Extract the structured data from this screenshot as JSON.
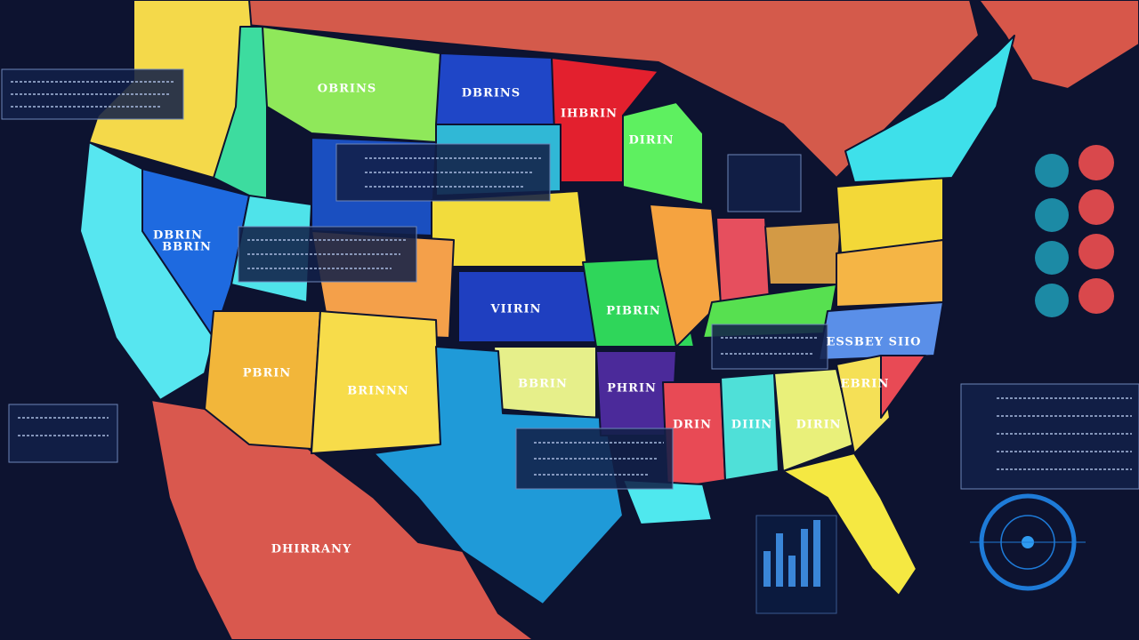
{
  "labels": [
    "OBRINS",
    "DBRINS",
    "IHBRIN",
    "DIRIN",
    "BBRIN",
    "VIIRIN",
    "PIBRIN",
    "PBRIN",
    "BRINNN",
    "BBRIN",
    "PHRIN",
    "DRIN",
    "DIIIN",
    "DIRIN",
    "EBRIN",
    "ESSBEY SIIO",
    "DHIRRANY",
    "DBRIN"
  ]
}
